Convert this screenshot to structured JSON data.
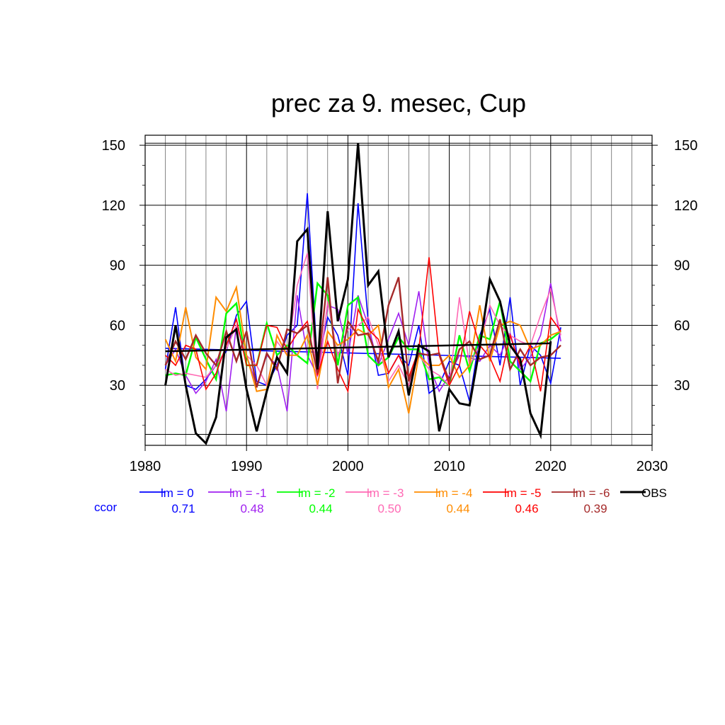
{
  "chart_data": {
    "type": "line",
    "title": "prec za 9. mesec, Cup",
    "xlabel": "",
    "ylabel": "",
    "xlim": [
      1980,
      2030
    ],
    "ylim": [
      0,
      155
    ],
    "x_ticks": [
      1980,
      1990,
      2000,
      2010,
      2020,
      2030
    ],
    "y_ticks": [
      30,
      60,
      90,
      120,
      150
    ],
    "grid": true,
    "ccor_label": "ccor",
    "ccor_color": "#0000ff",
    "legend_position": "bottom",
    "x": [
      1982,
      1983,
      1984,
      1985,
      1986,
      1987,
      1988,
      1989,
      1990,
      1991,
      1992,
      1993,
      1994,
      1995,
      1996,
      1997,
      1998,
      1999,
      2000,
      2001,
      2002,
      2003,
      2004,
      2005,
      2006,
      2007,
      2008,
      2009,
      2010,
      2011,
      2012,
      2013,
      2014,
      2015,
      2016,
      2017,
      2018,
      2019,
      2020,
      2021
    ],
    "series": [
      {
        "name": "lm = 0",
        "color": "#0000ff",
        "ccor": "0.71",
        "width": 1.6,
        "values": [
          38,
          69,
          30,
          28,
          33,
          40,
          47,
          65,
          72,
          32,
          30,
          40,
          55,
          60,
          126,
          40,
          64,
          55,
          35,
          121,
          62,
          35,
          36,
          45,
          40,
          60,
          26,
          30,
          42,
          40,
          22,
          55,
          68,
          40,
          74,
          30,
          50,
          45,
          31,
          59
        ],
        "trend": [
          48.5,
          43.5
        ]
      },
      {
        "name": "lm = -1",
        "color": "#a020f0",
        "ccor": "0.48",
        "width": 1.6,
        "values": [
          40,
          48,
          35,
          26,
          32,
          43,
          17,
          60,
          45,
          30,
          45,
          40,
          17,
          75,
          45,
          35,
          70,
          68,
          45,
          75,
          60,
          40,
          53,
          66,
          50,
          77,
          40,
          27,
          35,
          45,
          44,
          42,
          50,
          45,
          56,
          38,
          44,
          55,
          81,
          52
        ]
      },
      {
        "name": "lm = -2",
        "color": "#00ff00",
        "ccor": "0.44",
        "width": 2.4,
        "values": [
          35,
          36,
          35,
          54,
          43,
          33,
          66,
          71,
          40,
          40,
          61,
          45,
          50,
          45,
          41,
          81,
          75,
          40,
          70,
          74,
          45,
          40,
          44,
          54,
          48,
          48,
          33,
          34,
          30,
          55,
          37,
          55,
          53,
          72,
          42,
          37,
          32,
          51,
          53,
          57
        ]
      },
      {
        "name": "lm = -3",
        "color": "#ff69b4",
        "ccor": "0.50",
        "width": 1.6,
        "values": [
          38,
          35,
          36,
          35,
          34,
          40,
          48,
          60,
          45,
          40,
          30,
          52,
          45,
          80,
          96,
          28,
          72,
          45,
          58,
          60,
          64,
          50,
          32,
          40,
          30,
          45,
          38,
          35,
          30,
          74,
          40,
          50,
          70,
          60,
          55,
          52,
          50,
          65,
          78,
          55
        ]
      },
      {
        "name": "lm = -4",
        "color": "#ff8c00",
        "ccor": "0.44",
        "width": 2.0,
        "values": [
          53,
          42,
          69,
          44,
          38,
          74,
          67,
          79,
          45,
          27,
          28,
          55,
          45,
          45,
          55,
          30,
          57,
          50,
          53,
          58,
          55,
          60,
          29,
          38,
          16,
          45,
          40,
          40,
          45,
          34,
          40,
          70,
          42,
          60,
          62,
          60,
          48,
          50,
          55,
          57
        ]
      },
      {
        "name": "lm = -5",
        "color": "#ff0000",
        "ccor": "0.46",
        "width": 1.6,
        "values": [
          45,
          40,
          50,
          48,
          28,
          36,
          50,
          63,
          40,
          40,
          60,
          59,
          48,
          56,
          62,
          35,
          52,
          38,
          27,
          68,
          58,
          53,
          36,
          45,
          34,
          48,
          94,
          45,
          30,
          40,
          67,
          50,
          44,
          32,
          55,
          40,
          50,
          27,
          64,
          57
        ]
      },
      {
        "name": "lm = -6",
        "color": "#a52a2a",
        "ccor": "0.39",
        "width": 2.4,
        "values": [
          40,
          52,
          43,
          55,
          46,
          40,
          57,
          42,
          57,
          29,
          46,
          38,
          58,
          56,
          60,
          36,
          84,
          31,
          62,
          55,
          56,
          42,
          70,
          84,
          32,
          46,
          45,
          46,
          32,
          48,
          52,
          43,
          45,
          63,
          38,
          48,
          40,
          44,
          45,
          50
        ]
      },
      {
        "name": "OBS",
        "color": "#000000",
        "ccor": "",
        "width": 3.0,
        "values": [
          30,
          60,
          30,
          6,
          1,
          14,
          54,
          58,
          28,
          7,
          27,
          44,
          36,
          102,
          108,
          38,
          117,
          62,
          83,
          151,
          80,
          87,
          44,
          57,
          25,
          50,
          47,
          7,
          28,
          21,
          20,
          49,
          83,
          72,
          50,
          43,
          16,
          5,
          52,
          null
        ],
        "trend": [
          47.0,
          51.0
        ]
      }
    ]
  }
}
